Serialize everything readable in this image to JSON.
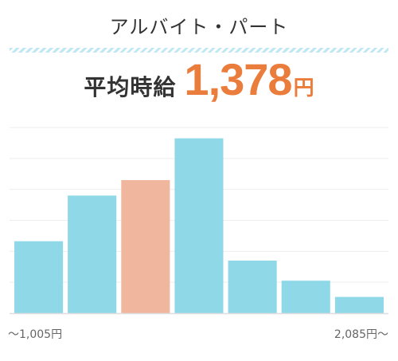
{
  "heading": "アルバイト・パート",
  "average": {
    "label": "平均時給",
    "value": "1,378",
    "unit": "円"
  },
  "chart_data": {
    "type": "bar",
    "values": [
      93,
      152,
      172,
      226,
      68,
      42,
      21
    ],
    "highlight_index": 2,
    "colors": {
      "bar": "#8fd8e8",
      "highlight": "#f0b79e",
      "grid": "#eeeeee",
      "baseline": "#dddddd"
    },
    "ylim": [
      0,
      240
    ],
    "grid": true,
    "x_range_labels": {
      "low": "～1,005円",
      "high": "2,085円～"
    }
  }
}
